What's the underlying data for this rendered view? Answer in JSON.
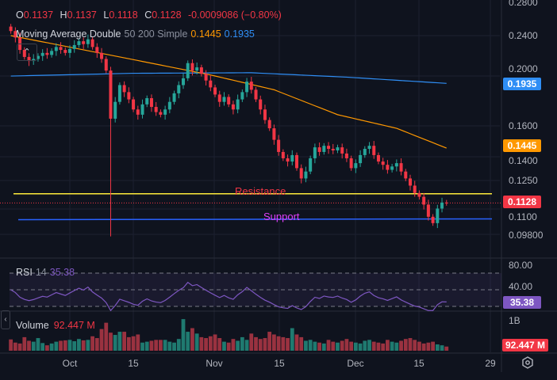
{
  "ohlc_legend": {
    "o_label": "O",
    "o": "0.1137",
    "h_label": "H",
    "h": "0.1137",
    "l_label": "L",
    "l": "0.1118",
    "c_label": "C",
    "c": "0.1128",
    "change": "-0.0009086 (−0.80%)"
  },
  "ma_legend": {
    "title": "Moving Average Double",
    "params": "50 200 Simple",
    "ma50": "0.1445",
    "ma200": "0.1935"
  },
  "rsi_legend": {
    "title": "RSI",
    "param": "14",
    "value": "35.38"
  },
  "volume_legend": {
    "title": "Volume",
    "value": "92.447 M"
  },
  "price_axis": [
    "0.2800",
    "0.2400",
    "0.2000",
    "0.1600",
    "0.1400",
    "0.1250",
    "0.1100",
    "0.09800"
  ],
  "rsi_axis": [
    "80.00",
    "40.00"
  ],
  "volume_axis": [
    "1B"
  ],
  "tags": {
    "ma200": "0.1935",
    "ma50": "0.1445",
    "last": "0.1128",
    "rsi": "35.38",
    "volume": "92.447 M"
  },
  "levels": {
    "resistance": "Resistance",
    "support": "Support"
  },
  "time_axis": [
    "Oct",
    "15",
    "Nov",
    "15",
    "Dec",
    "15",
    "29"
  ],
  "icons": {
    "collapse": "chevron-up-icon",
    "settings": "settings-hexagon-icon",
    "side": "chevron-left-icon"
  },
  "colors": {
    "up": "#26a69a",
    "down": "#f23645",
    "ma50": "#ff9800",
    "ma200": "#2f8ef5",
    "resistance": "#ffeb3b",
    "support": "#2962ff",
    "rsi": "#7e57c2",
    "background": "#0f131e"
  },
  "chart_data": {
    "type": "candlestick",
    "scale": "log",
    "start_date": "Sep 18",
    "end_date": "Dec 23",
    "closes": [
      0.245,
      0.238,
      0.225,
      0.218,
      0.214,
      0.216,
      0.219,
      0.222,
      0.22,
      0.224,
      0.228,
      0.225,
      0.222,
      0.226,
      0.23,
      0.234,
      0.231,
      0.236,
      0.228,
      0.222,
      0.216,
      0.205,
      0.165,
      0.178,
      0.192,
      0.186,
      0.18,
      0.172,
      0.168,
      0.176,
      0.181,
      0.174,
      0.17,
      0.168,
      0.172,
      0.178,
      0.185,
      0.192,
      0.198,
      0.212,
      0.205,
      0.208,
      0.202,
      0.196,
      0.19,
      0.184,
      0.178,
      0.182,
      0.176,
      0.172,
      0.18,
      0.186,
      0.195,
      0.188,
      0.18,
      0.172,
      0.164,
      0.158,
      0.15,
      0.142,
      0.138,
      0.136,
      0.14,
      0.132,
      0.126,
      0.13,
      0.138,
      0.145,
      0.142,
      0.146,
      0.144,
      0.143,
      0.145,
      0.141,
      0.138,
      0.132,
      0.135,
      0.14,
      0.144,
      0.146,
      0.14,
      0.136,
      0.134,
      0.131,
      0.133,
      0.135,
      0.13,
      0.126,
      0.122,
      0.118,
      0.116,
      0.112,
      0.106,
      0.103,
      0.11,
      0.113,
      0.1128
    ],
    "notable_low": {
      "date": "Oct 10",
      "value": 0.097
    },
    "ma50": [
      [
        "Sep 18",
        0.24
      ],
      [
        "Oct 12",
        0.218
      ],
      [
        "Nov 1",
        0.201
      ],
      [
        "Nov 15",
        0.188
      ],
      [
        "Nov 29",
        0.168
      ],
      [
        "Dec 12",
        0.158
      ],
      [
        "Dec 23",
        0.1445
      ]
    ],
    "ma200": [
      [
        "Sep 18",
        0.2
      ],
      [
        "Oct 15",
        0.2025
      ],
      [
        "Nov 10",
        0.203
      ],
      [
        "Dec 1",
        0.199
      ],
      [
        "Dec 23",
        0.1935
      ]
    ],
    "resistance": 0.1176,
    "support": 0.105,
    "rsi_last": 35.38,
    "rsi_bands": [
      70,
      50,
      30
    ],
    "volume_millions": [
      250,
      180,
      160,
      300,
      220,
      200,
      280,
      170,
      120,
      160,
      200,
      220,
      230,
      240,
      210,
      260,
      230,
      240,
      320,
      280,
      480,
      620,
      400,
      350,
      420,
      420,
      300,
      320,
      360,
      180,
      200,
      220,
      240,
      240,
      240,
      200,
      180,
      260,
      700,
      420,
      500,
      380,
      300,
      280,
      320,
      360,
      280,
      200,
      180,
      260,
      220,
      300,
      240,
      380,
      300,
      260,
      280,
      420,
      360,
      320,
      300,
      280,
      500,
      360,
      300,
      220,
      240,
      200,
      180,
      160,
      240,
      200,
      180,
      220,
      260,
      200,
      180,
      160,
      220,
      240,
      200,
      180,
      160,
      240,
      200,
      180,
      220,
      260,
      280,
      240,
      200,
      160,
      180,
      200,
      140,
      120,
      92.447
    ],
    "price_ylim": [
      0.095,
      0.285
    ]
  }
}
